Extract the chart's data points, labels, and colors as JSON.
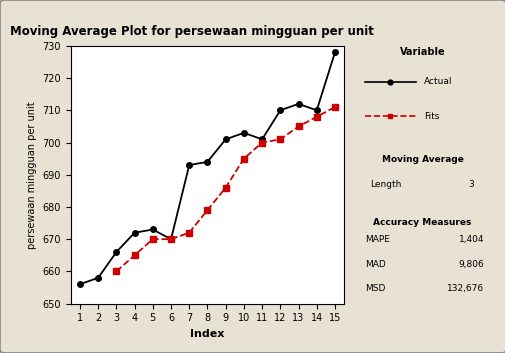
{
  "title": "Moving Average Plot for persewaan mingguan per unit",
  "xlabel": "Index",
  "ylabel": "persewaan mingguan per unit",
  "actual_x": [
    1,
    2,
    3,
    4,
    5,
    6,
    7,
    8,
    9,
    10,
    11,
    12,
    13,
    14,
    15
  ],
  "actual_y": [
    656,
    658,
    666,
    672,
    673,
    670,
    693,
    694,
    701,
    703,
    701,
    710,
    712,
    710,
    728
  ],
  "fits_x": [
    3,
    4,
    5,
    6,
    7,
    8,
    9,
    10,
    11,
    12,
    13,
    14,
    15
  ],
  "fits_y": [
    660,
    665,
    670,
    670,
    672,
    679,
    686,
    695,
    700,
    701,
    705,
    708,
    711
  ],
  "ylim": [
    650,
    730
  ],
  "xticks": [
    1,
    2,
    3,
    4,
    5,
    6,
    7,
    8,
    9,
    10,
    11,
    12,
    13,
    14,
    15
  ],
  "yticks": [
    650,
    660,
    670,
    680,
    690,
    700,
    710,
    720,
    730
  ],
  "actual_color": "#000000",
  "fits_color": "#cc0000",
  "outer_bg_color": "#e8e2d4",
  "plot_bg_color": "#ffffff",
  "box_bg_color": "#f0ebe0",
  "border_color": "#aaaaaa",
  "legend_variable_title": "Variable",
  "legend_actual_label": "Actual",
  "legend_fits_label": "Fits",
  "ma_title": "Moving Average",
  "ma_length_label": "Length",
  "ma_length_value": "3",
  "accuracy_title": "Accuracy Measures",
  "mape_label": "MAPE",
  "mape_value": "1,404",
  "mad_label": "MAD",
  "mad_value": "9,806",
  "msd_label": "MSD",
  "msd_value": "132,676"
}
